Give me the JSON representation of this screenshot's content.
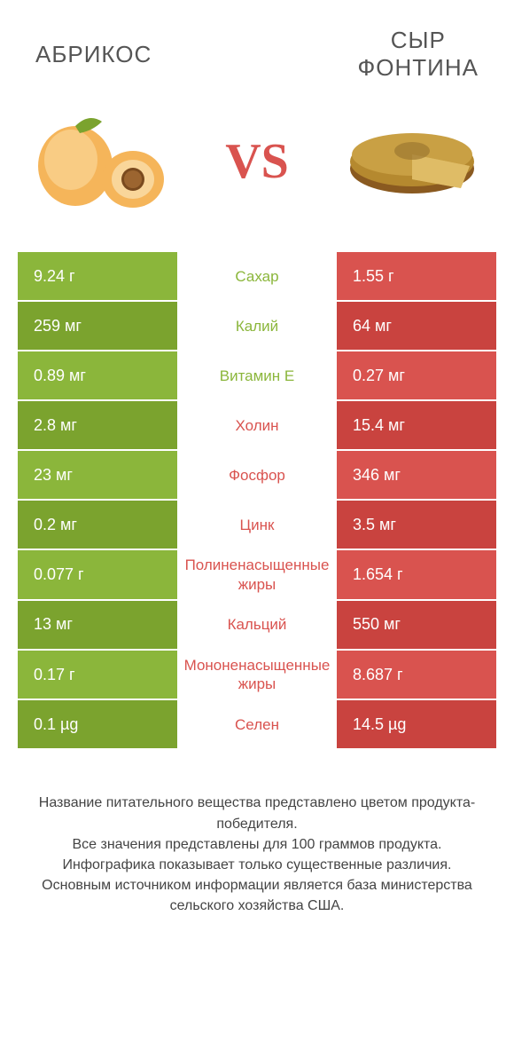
{
  "colors": {
    "green": "#8bb63b",
    "red": "#d9534f",
    "greenDark": "#7ba32e",
    "redDark": "#c9433f",
    "midText": "#d9534f",
    "midTextGreen": "#8bb63b"
  },
  "header": {
    "left": "АБРИКОС",
    "right_line1": "СЫР",
    "right_line2": "ФОНТИНА",
    "vs": "VS"
  },
  "rows": [
    {
      "left": "9.24 г",
      "mid": "Сахар",
      "right": "1.55 г",
      "winner": "left"
    },
    {
      "left": "259 мг",
      "mid": "Калий",
      "right": "64 мг",
      "winner": "left"
    },
    {
      "left": "0.89 мг",
      "mid": "Витамин E",
      "right": "0.27 мг",
      "winner": "left"
    },
    {
      "left": "2.8 мг",
      "mid": "Холин",
      "right": "15.4 мг",
      "winner": "right"
    },
    {
      "left": "23 мг",
      "mid": "Фосфор",
      "right": "346 мг",
      "winner": "right"
    },
    {
      "left": "0.2 мг",
      "mid": "Цинк",
      "right": "3.5 мг",
      "winner": "right"
    },
    {
      "left": "0.077 г",
      "mid": "Полиненасыщенные жиры",
      "right": "1.654 г",
      "winner": "right"
    },
    {
      "left": "13 мг",
      "mid": "Кальций",
      "right": "550 мг",
      "winner": "right"
    },
    {
      "left": "0.17 г",
      "mid": "Мононенасыщенные жиры",
      "right": "8.687 г",
      "winner": "right"
    },
    {
      "left": "0.1 µg",
      "mid": "Селен",
      "right": "14.5 µg",
      "winner": "right"
    }
  ],
  "footer": {
    "l1": "Название питательного вещества представлено цветом продукта-победителя.",
    "l2": "Все значения представлены для 100 граммов продукта.",
    "l3": "Инфографика показывает только существенные различия.",
    "l4": "Основным источником информации является база министерства сельского хозяйства США."
  }
}
